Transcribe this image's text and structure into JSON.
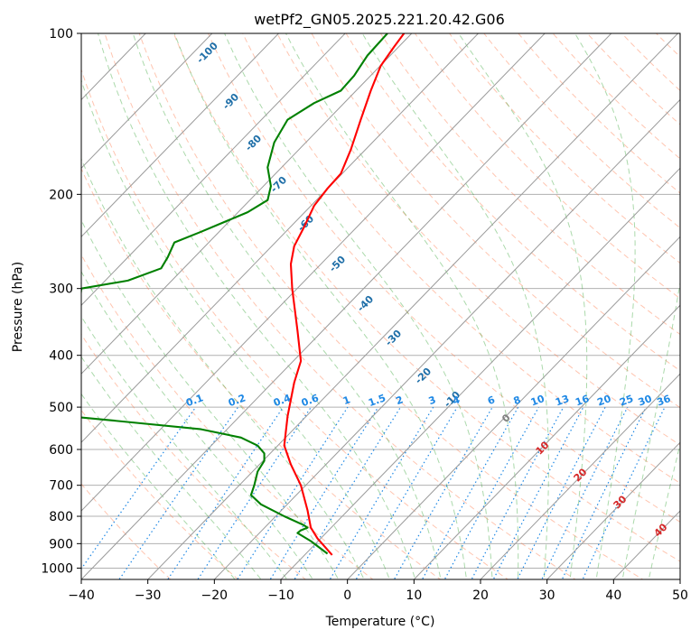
{
  "chart_data": {
    "type": "line",
    "title": "wetPf2_GN05.2025.221.20.42.G06",
    "xlabel": "Temperature (°C)",
    "ylabel": "Pressure (hPa)",
    "xlim": [
      -40,
      50
    ],
    "ylim": [
      1050,
      100
    ],
    "y_scale": "log",
    "grid": true,
    "x_ticks": [
      -40,
      -30,
      -20,
      -10,
      0,
      10,
      20,
      30,
      40,
      50
    ],
    "x_tick_labels": [
      "−40",
      "−30",
      "−20",
      "−10",
      "0",
      "10",
      "20",
      "30",
      "40",
      "50"
    ],
    "y_ticks": [
      1000,
      900,
      800,
      700,
      600,
      500,
      400,
      300,
      200,
      100
    ],
    "y_tick_labels": [
      "1000",
      "900",
      "800",
      "700",
      "600",
      "500",
      "400",
      "300",
      "200",
      "100"
    ],
    "series": [
      {
        "color": "#ff0000",
        "points": [
          [
            -2.3,
            945
          ],
          [
            -4.5,
            880
          ],
          [
            -5.5,
            840
          ],
          [
            -6.0,
            780
          ],
          [
            -7.0,
            700
          ],
          [
            -8.5,
            640
          ],
          [
            -9.5,
            590
          ],
          [
            -9.0,
            520
          ],
          [
            -8.0,
            450
          ],
          [
            -7.0,
            410
          ],
          [
            -7.5,
            360
          ],
          [
            -8.3,
            300
          ],
          [
            -8.5,
            270
          ],
          [
            -8.0,
            250
          ],
          [
            -6.5,
            230
          ],
          [
            -5.0,
            210
          ],
          [
            -3.0,
            195
          ],
          [
            -1.0,
            183
          ],
          [
            0.5,
            165
          ],
          [
            2.0,
            145
          ],
          [
            3.5,
            128
          ],
          [
            5.0,
            115
          ],
          [
            7.0,
            106
          ],
          [
            8.5,
            100
          ]
        ]
      },
      {
        "color": "#008000",
        "points": [
          [
            -3.0,
            940
          ],
          [
            -5.5,
            890
          ],
          [
            -7.5,
            860
          ],
          [
            -7.0,
            850
          ],
          [
            -6.0,
            840
          ],
          [
            -6.5,
            832
          ],
          [
            -9.5,
            800
          ],
          [
            -13.0,
            760
          ],
          [
            -14.5,
            730
          ],
          [
            -14.0,
            700
          ],
          [
            -13.5,
            660
          ],
          [
            -12.5,
            630
          ],
          [
            -12.5,
            610
          ],
          [
            -13.5,
            590
          ],
          [
            -16.0,
            570
          ],
          [
            -22.0,
            550
          ],
          [
            -35.0,
            530
          ],
          [
            -42.0,
            520
          ],
          [
            -40.0,
            300
          ],
          [
            -33.0,
            290
          ],
          [
            -28.0,
            275
          ],
          [
            -27.0,
            262
          ],
          [
            -26.0,
            246
          ],
          [
            -22.0,
            235
          ],
          [
            -15.0,
            216
          ],
          [
            -12.0,
            205
          ],
          [
            -11.5,
            193
          ],
          [
            -12.0,
            178
          ],
          [
            -11.0,
            160
          ],
          [
            -9.0,
            145
          ],
          [
            -5.0,
            135
          ],
          [
            -1.0,
            128
          ],
          [
            1.0,
            120
          ],
          [
            3.0,
            110
          ],
          [
            6.0,
            100
          ]
        ]
      }
    ],
    "isotherm_temps": [
      -100,
      -90,
      -80,
      -70,
      -60,
      -50,
      -40,
      -30,
      -20,
      -10
    ],
    "isotherm_labels": [
      "-100",
      "-90",
      "-80",
      "-70",
      "-60",
      "-50",
      "-40",
      "-30",
      "-20",
      "-10"
    ],
    "mixing_ratios": [
      0.1,
      0.2,
      0.4,
      0.6,
      1,
      1.5,
      2,
      3,
      4,
      6,
      8,
      10,
      13,
      16,
      20,
      25,
      30,
      36
    ],
    "mixing_ratio_labels": [
      "0.1",
      "0.2",
      "0.4",
      "0.6",
      "1",
      "1.5",
      "2",
      "3",
      "4",
      "6",
      "8",
      "10",
      "13",
      "16",
      "20",
      "25",
      "30",
      "36"
    ],
    "moist_adiabat_labels": [
      "0",
      "10",
      "20",
      "30",
      "40"
    ],
    "colors": {
      "temperature": "#ff0000",
      "dewpoint": "#008000",
      "isotherm": "#808080",
      "dry_adiabat": "#ff7f50",
      "moist_adiabat": "#2ca02c",
      "mixing_ratio": "#1e88e5",
      "isotherm_label": "#1f6fa8",
      "moist_label": "#d62728"
    }
  }
}
